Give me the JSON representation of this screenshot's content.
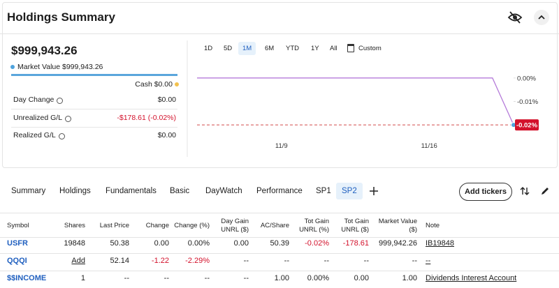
{
  "header": {
    "title": "Holdings Summary"
  },
  "summary": {
    "total": "$999,943.26",
    "market_value": "Market Value $999,943.26",
    "cash": "Cash $0.00",
    "rows": [
      {
        "label": "Day Change",
        "value": "$0.00"
      },
      {
        "label": "Unrealized G/L",
        "value": "-$178.61 (-0.02%)"
      },
      {
        "label": "Realized G/L",
        "value": "$0.00"
      }
    ]
  },
  "ranges": {
    "items": [
      "1D",
      "5D",
      "1M",
      "6M",
      "YTD",
      "1Y",
      "All",
      "Custom"
    ],
    "active": 2
  },
  "chart_data": {
    "type": "line",
    "categories": [
      null,
      null,
      null,
      null,
      "11/9",
      null,
      null,
      null,
      null,
      null,
      null,
      "11/16",
      null,
      null,
      null,
      null
    ],
    "values": [
      0,
      0,
      0,
      0,
      0,
      0,
      0,
      0,
      0,
      0,
      0,
      0,
      0,
      0,
      0,
      -0.02
    ],
    "value_labels": [
      null,
      null,
      null,
      null,
      null,
      null,
      null,
      null,
      null,
      null,
      null,
      null,
      null,
      null,
      null,
      "-0.02%"
    ],
    "color": "#b57bd9",
    "ylim": [
      -0.025,
      0.005
    ],
    "yticks": [
      {
        "value": 0,
        "label": "0.00%"
      },
      {
        "value": -0.01,
        "label": "-0.01%"
      },
      {
        "value": -0.02,
        "label": "-0.02%"
      }
    ]
  },
  "tabs": {
    "items": [
      "Summary",
      "Holdings",
      "Fundamentals",
      "Basic",
      "DayWatch",
      "Performance",
      "SP1",
      "SP2"
    ],
    "active": 7,
    "add_button": "Add tickers"
  },
  "table": {
    "columns": [
      "Symbol",
      "Shares",
      "Last Price",
      "Change",
      "Change (%)",
      "Day Gain\nUNRL ($)",
      "AC/Share",
      "Tot Gain\nUNRL (%)",
      "Tot Gain\nUNRL ($)",
      "Market Value\n($)",
      "Note"
    ],
    "rows": [
      [
        "USFR",
        "19848",
        "50.38",
        "0.00",
        "0.00%",
        "0.00",
        "50.39",
        "-0.02%",
        "-178.61",
        "999,942.26",
        "IB19848"
      ],
      [
        "QQQI",
        "Add",
        "52.14",
        "-1.22",
        "-2.29%",
        "--",
        "--",
        "--",
        "--",
        "--",
        "--"
      ],
      [
        "$$INCOME",
        "1",
        "--",
        "--",
        "--",
        "--",
        "1.00",
        "0.00%",
        "0.00",
        "1.00",
        "Dividends Interest Account"
      ]
    ]
  }
}
